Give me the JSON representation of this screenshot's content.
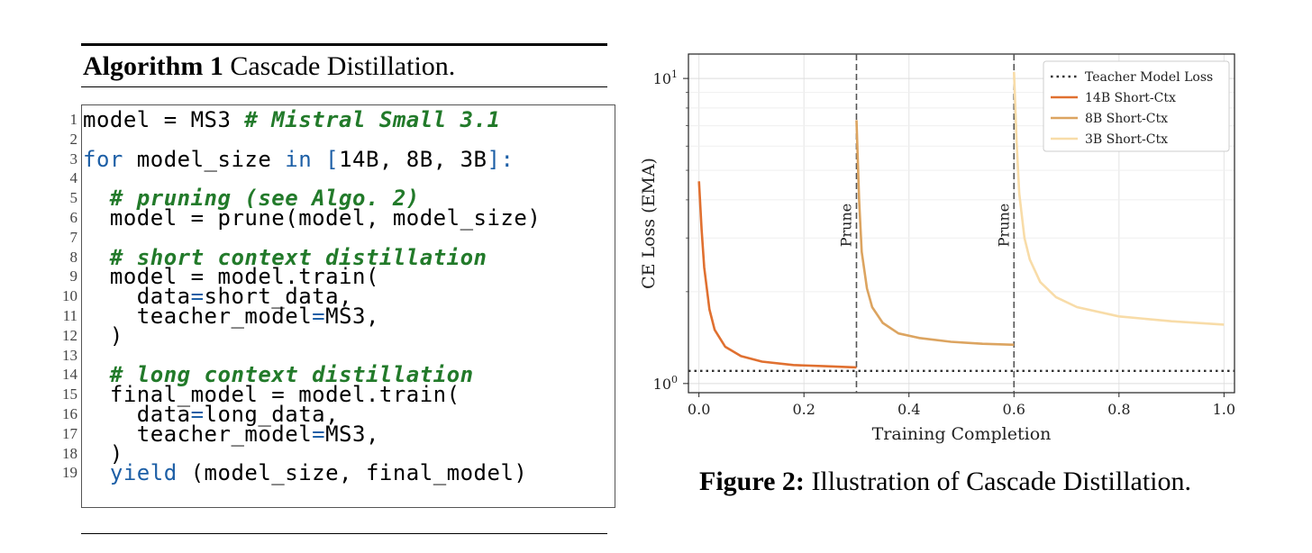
{
  "algorithm": {
    "label": "Algorithm 1",
    "title": "Cascade Distillation.",
    "lines": [
      {
        "n": "1",
        "html": "model = MS3 <span class=\"cm\"># Mistral Small 3.1</span>"
      },
      {
        "n": "2",
        "html": ""
      },
      {
        "n": "3",
        "html": "<span class=\"kw\">for</span> model_size <span class=\"kw\">in</span> <span class=\"op\">[</span>14B, 8B, 3B<span class=\"op\">]:</span>"
      },
      {
        "n": "4",
        "html": ""
      },
      {
        "n": "5",
        "html": "  <span class=\"cm\"># pruning (see Algo. 2)</span>"
      },
      {
        "n": "6",
        "html": "  model = prune(model, model_size)"
      },
      {
        "n": "7",
        "html": ""
      },
      {
        "n": "8",
        "html": "  <span class=\"cm\"># short context distillation</span>"
      },
      {
        "n": "9",
        "html": "  model = model.train("
      },
      {
        "n": "10",
        "html": "    data<span class=\"op\">=</span>short_data,"
      },
      {
        "n": "11",
        "html": "    teacher_model<span class=\"op\">=</span>MS3,"
      },
      {
        "n": "12",
        "html": "  )"
      },
      {
        "n": "13",
        "html": ""
      },
      {
        "n": "14",
        "html": "  <span class=\"cm\"># long context distillation</span>"
      },
      {
        "n": "15",
        "html": "  final_model = model.train("
      },
      {
        "n": "16",
        "html": "    data<span class=\"op\">=</span>long_data,"
      },
      {
        "n": "17",
        "html": "    teacher_model<span class=\"op\">=</span>MS3,"
      },
      {
        "n": "18",
        "html": "  )"
      },
      {
        "n": "19",
        "html": "  <span class=\"kw\">yield</span> (model_size, final_model)"
      }
    ]
  },
  "figure": {
    "label": "Figure 2:",
    "caption": "Illustration of Cascade Distillation."
  },
  "chart_data": {
    "type": "line",
    "xlabel": "Training Completion",
    "ylabel": "CE Loss (EMA)",
    "xlim": [
      -0.02,
      1.02
    ],
    "ylim_log10": [
      -0.03,
      1.08
    ],
    "y_scale": "log",
    "xticks": [
      0.0,
      0.2,
      0.4,
      0.6,
      0.8,
      1.0
    ],
    "xtick_labels": [
      "0.0",
      "0.2",
      "0.4",
      "0.6",
      "0.8",
      "1.0"
    ],
    "yticks_major": [
      1,
      10
    ],
    "ytick_labels": [
      "10^0",
      "10^1"
    ],
    "grid": true,
    "legend_position": "top-right",
    "teacher_loss": 1.1,
    "prune_markers": [
      {
        "x": 0.3,
        "label": "Prune"
      },
      {
        "x": 0.6,
        "label": "Prune"
      }
    ],
    "series": [
      {
        "name": "Teacher Model Loss",
        "style": "dotted",
        "color": "#333333",
        "x": [
          -0.02,
          1.02
        ],
        "y": [
          1.1,
          1.1
        ]
      },
      {
        "name": "14B Short-Ctx",
        "color": "#e07030",
        "x": [
          0.0,
          0.005,
          0.01,
          0.02,
          0.03,
          0.05,
          0.08,
          0.12,
          0.18,
          0.24,
          0.3
        ],
        "y": [
          4.6,
          3.2,
          2.4,
          1.75,
          1.5,
          1.32,
          1.23,
          1.18,
          1.15,
          1.14,
          1.13
        ]
      },
      {
        "name": "8B Short-Ctx",
        "color": "#dca460",
        "x": [
          0.3,
          0.305,
          0.31,
          0.32,
          0.33,
          0.35,
          0.38,
          0.42,
          0.48,
          0.54,
          0.6
        ],
        "y": [
          7.3,
          4.0,
          2.7,
          2.05,
          1.78,
          1.58,
          1.46,
          1.41,
          1.37,
          1.35,
          1.34
        ]
      },
      {
        "name": "3B Short-Ctx",
        "color": "#f8dca8",
        "x": [
          0.6,
          0.605,
          0.61,
          0.62,
          0.63,
          0.65,
          0.68,
          0.72,
          0.8,
          0.9,
          1.0
        ],
        "y": [
          10.5,
          6.2,
          4.2,
          3.0,
          2.55,
          2.15,
          1.92,
          1.78,
          1.66,
          1.6,
          1.56
        ]
      }
    ]
  }
}
